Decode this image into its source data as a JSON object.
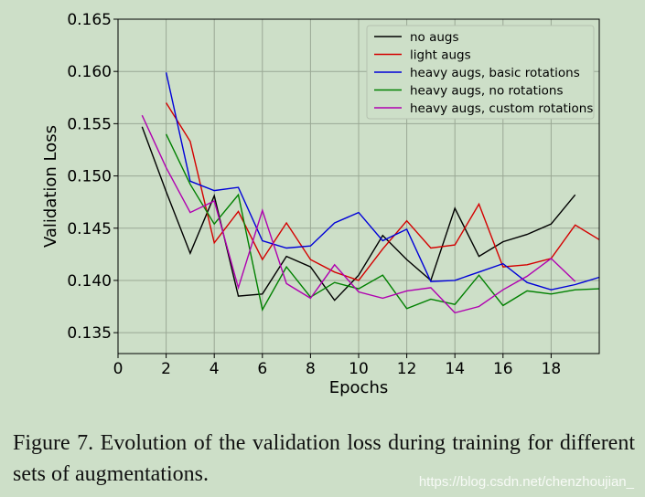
{
  "chart_data": {
    "type": "line",
    "title": "",
    "xlabel": "Epochs",
    "ylabel": "Validation Loss",
    "xlim": [
      0,
      20
    ],
    "ylim": [
      0.133,
      0.165
    ],
    "grid": true,
    "legend_position": "top-right",
    "xticks": [
      0,
      2,
      4,
      6,
      8,
      10,
      12,
      14,
      16,
      18
    ],
    "yticks": [
      0.135,
      0.14,
      0.145,
      0.15,
      0.155,
      0.16,
      0.165
    ],
    "ytick_labels": [
      "0.135",
      "0.140",
      "0.145",
      "0.150",
      "0.155",
      "0.160",
      "0.165"
    ],
    "series": [
      {
        "name": "no augs",
        "color": "#000000",
        "x": [
          1,
          2,
          3,
          4,
          5,
          6,
          7,
          8,
          9,
          10,
          11,
          12,
          13,
          14,
          15,
          16,
          17,
          18,
          19
        ],
        "y": [
          0.1547,
          0.1485,
          0.1426,
          0.1481,
          0.1385,
          0.1387,
          0.1423,
          0.1413,
          0.1381,
          0.1405,
          0.1443,
          0.142,
          0.14,
          0.1469,
          0.1423,
          0.1437,
          0.1444,
          0.1454,
          0.1482
        ]
      },
      {
        "name": "light augs",
        "color": "#d40000",
        "x": [
          2,
          3,
          4,
          5,
          6,
          7,
          8,
          9,
          10,
          11,
          12,
          13,
          14,
          15,
          16,
          17,
          18,
          19,
          20
        ],
        "y": [
          0.157,
          0.1533,
          0.1436,
          0.1466,
          0.142,
          0.1455,
          0.142,
          0.1408,
          0.14,
          0.143,
          0.1457,
          0.1431,
          0.1434,
          0.1473,
          0.1413,
          0.1415,
          0.1421,
          0.1453,
          0.1439
        ]
      },
      {
        "name": "heavy augs, basic rotations",
        "color": "#0000d8",
        "x": [
          2,
          3,
          4,
          5,
          6,
          7,
          8,
          9,
          10,
          11,
          12,
          13,
          14,
          15,
          16,
          17,
          18,
          19,
          20
        ],
        "y": [
          0.1599,
          0.1495,
          0.1486,
          0.1489,
          0.1438,
          0.1431,
          0.1433,
          0.1455,
          0.1465,
          0.1438,
          0.1449,
          0.1399,
          0.14,
          0.1408,
          0.1416,
          0.1398,
          0.1391,
          0.1396,
          0.1403
        ]
      },
      {
        "name": "heavy augs, no rotations",
        "color": "#008000",
        "x": [
          2,
          3,
          4,
          5,
          6,
          7,
          8,
          9,
          10,
          11,
          12,
          13,
          14,
          15,
          16,
          17,
          18,
          19,
          20
        ],
        "y": [
          0.154,
          0.1492,
          0.1454,
          0.1482,
          0.1372,
          0.1413,
          0.1384,
          0.1398,
          0.1392,
          0.1405,
          0.1373,
          0.1382,
          0.1377,
          0.1405,
          0.1376,
          0.139,
          0.1387,
          0.1391,
          0.1392
        ]
      },
      {
        "name": "heavy augs, custom rotations",
        "color": "#b000b0",
        "x": [
          1,
          2,
          3,
          4,
          5,
          6,
          7,
          8,
          9,
          10,
          11,
          12,
          13,
          14,
          15,
          16,
          17,
          18,
          19
        ],
        "y": [
          0.1558,
          0.1508,
          0.1465,
          0.1476,
          0.1393,
          0.1467,
          0.1397,
          0.1383,
          0.1415,
          0.1389,
          0.1383,
          0.139,
          0.1393,
          0.1369,
          0.1375,
          0.1391,
          0.1404,
          0.1421,
          0.1399
        ]
      }
    ]
  },
  "caption": "Figure 7. Evolution of the validation loss during training for different sets of augmentations.",
  "watermark": "https://blog.csdn.net/chenzhoujian_"
}
